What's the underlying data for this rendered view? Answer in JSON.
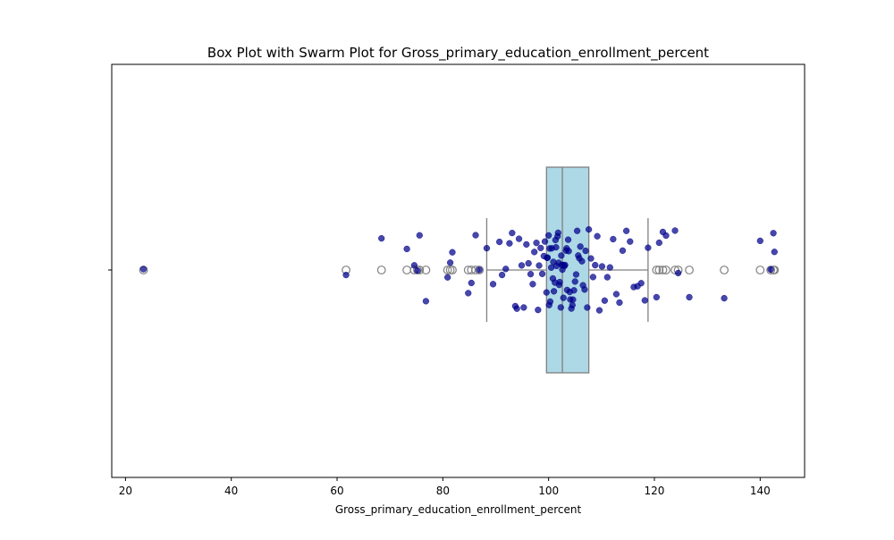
{
  "chart_data": {
    "type": "box",
    "title": "Box Plot with Swarm Plot for Gross_primary_education_enrollment_percent",
    "xlabel": "Gross_primary_education_enrollment_percent",
    "ylabel": "",
    "xlim": [
      17.4,
      148.4
    ],
    "x_ticks": [
      20,
      40,
      60,
      80,
      100,
      120,
      140
    ],
    "grid": false,
    "box": {
      "q1": 99.6,
      "median": 102.6,
      "q3": 107.6,
      "whisker_low": 88.3,
      "whisker_high": 118.8,
      "fill_color": "#add8e6",
      "line_color": "#808080",
      "outliers": [
        23.4,
        61.7,
        68.4,
        73.2,
        74.6,
        75.2,
        75.6,
        76.8,
        80.9,
        81.4,
        81.8,
        84.8,
        85.4,
        86.2,
        86.9,
        120.4,
        120.9,
        121.6,
        122.2,
        123.9,
        124.5,
        126.6,
        133.2,
        140.0,
        142.0,
        142.5,
        142.7
      ]
    },
    "swarm": {
      "color": "#00008b",
      "values": [
        23.4,
        61.7,
        68.4,
        73.2,
        74.6,
        75.2,
        75.6,
        76.8,
        80.9,
        81.4,
        81.8,
        84.8,
        85.4,
        86.2,
        86.9,
        88.3,
        89.5,
        90.7,
        91.2,
        91.9,
        92.6,
        93.1,
        93.7,
        94.0,
        94.4,
        94.9,
        95.3,
        95.8,
        96.2,
        96.6,
        97.0,
        97.3,
        97.7,
        98.0,
        98.2,
        98.5,
        98.8,
        99.1,
        99.3,
        99.6,
        99.7,
        99.8,
        100.0,
        100.1,
        100.2,
        100.3,
        100.5,
        100.6,
        100.8,
        100.9,
        101.0,
        101.2,
        101.3,
        101.4,
        101.5,
        101.7,
        101.8,
        101.9,
        102.0,
        102.1,
        102.3,
        102.4,
        102.5,
        102.6,
        102.7,
        102.8,
        103.0,
        103.1,
        103.3,
        103.4,
        103.5,
        103.7,
        103.8,
        104.0,
        104.1,
        104.3,
        104.5,
        104.6,
        104.8,
        105.0,
        105.2,
        105.4,
        105.6,
        105.8,
        106.0,
        106.3,
        106.5,
        106.8,
        107.0,
        107.3,
        107.6,
        108.0,
        108.4,
        108.8,
        109.2,
        109.6,
        110.1,
        110.6,
        111.1,
        111.6,
        112.2,
        112.8,
        113.4,
        114.0,
        114.7,
        115.4,
        116.1,
        116.8,
        117.5,
        118.2,
        118.8,
        120.4,
        120.9,
        121.6,
        122.2,
        123.9,
        124.5,
        126.6,
        133.2,
        140.0,
        142.0,
        142.5,
        142.7
      ]
    }
  }
}
